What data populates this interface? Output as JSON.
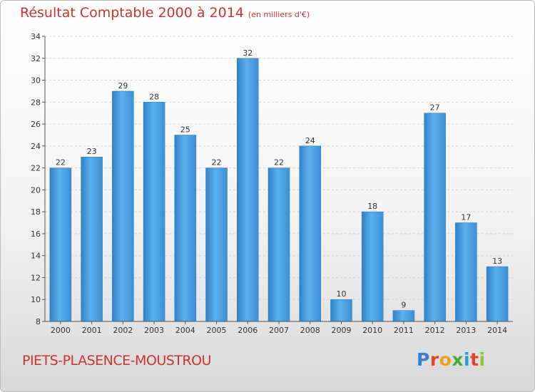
{
  "header": {
    "title": "Résultat Comptable 2000 à 2014",
    "subtitle": "(en milliers d'€)"
  },
  "footer": {
    "commune": "PIETS-PLASENCE-MOUSTROU"
  },
  "logo": {
    "letters": [
      "P",
      "r",
      "o",
      "x",
      "i",
      "t",
      "i"
    ],
    "colors": [
      "#3a7fd0",
      "#e5432b",
      "#f0a020",
      "#4aaa3c",
      "#2a9bd8",
      "#e5432b",
      "#8cc63e"
    ]
  },
  "chart_data": {
    "type": "bar",
    "title": "Résultat Comptable 2000 à 2014",
    "categories": [
      "2000",
      "2001",
      "2002",
      "2003",
      "2004",
      "2005",
      "2006",
      "2007",
      "2008",
      "2009",
      "2010",
      "2011",
      "2012",
      "2013",
      "2014"
    ],
    "values": [
      22,
      23,
      29,
      28,
      25,
      22,
      32,
      22,
      24,
      10,
      18,
      9,
      27,
      17,
      13
    ],
    "ylim": [
      8,
      34
    ],
    "yticks": [
      8,
      10,
      12,
      14,
      16,
      18,
      20,
      22,
      24,
      26,
      28,
      30,
      32,
      34
    ],
    "grid": true,
    "bar_color": "#4a9fe0"
  }
}
